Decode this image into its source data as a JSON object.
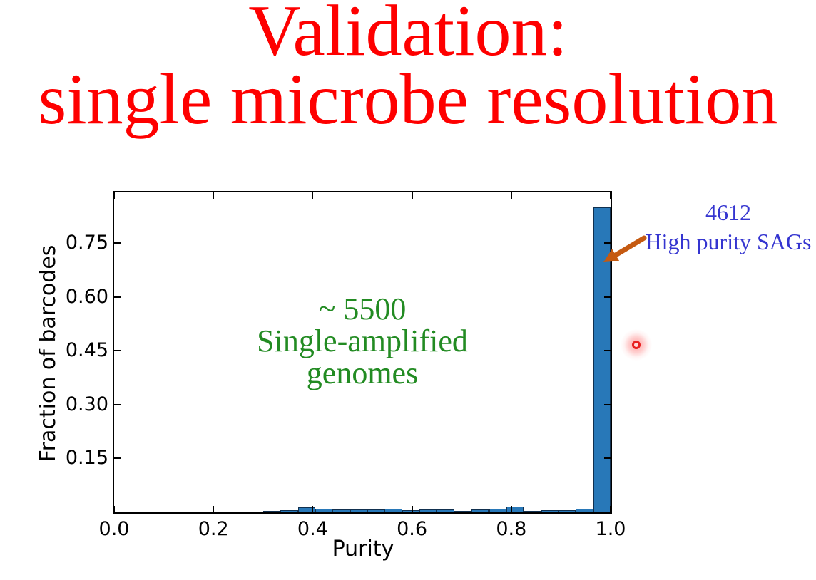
{
  "slide": {
    "title_line1": "Validation:",
    "title_line2": "single microbe resolution",
    "title_color": "#fe0000"
  },
  "chart_data": {
    "type": "bar",
    "subtype": "histogram",
    "title": "",
    "xlabel": "Purity",
    "ylabel": "Fraction of barcodes",
    "xlim": [
      0.0,
      1.0
    ],
    "ylim": [
      0.0,
      0.891
    ],
    "grid": false,
    "legend": null,
    "tick_direction": "in",
    "x_ticks": [
      {
        "value": 0.0,
        "label": "0.0"
      },
      {
        "value": 0.2,
        "label": "0.2"
      },
      {
        "value": 0.4,
        "label": "0.4"
      },
      {
        "value": 0.6,
        "label": "0.6"
      },
      {
        "value": 0.8,
        "label": "0.8"
      },
      {
        "value": 1.0,
        "label": "1.0"
      }
    ],
    "y_ticks": [
      {
        "value": 0.15,
        "label": "0.15"
      },
      {
        "value": 0.3,
        "label": "0.30"
      },
      {
        "value": 0.45,
        "label": "0.45"
      },
      {
        "value": 0.6,
        "label": "0.60"
      },
      {
        "value": 0.75,
        "label": "0.75"
      }
    ],
    "bin_width": 0.035,
    "bins": [
      {
        "x": 0.3,
        "y": 0.003
      },
      {
        "x": 0.335,
        "y": 0.007
      },
      {
        "x": 0.37,
        "y": 0.013
      },
      {
        "x": 0.405,
        "y": 0.01
      },
      {
        "x": 0.44,
        "y": 0.008
      },
      {
        "x": 0.475,
        "y": 0.008
      },
      {
        "x": 0.51,
        "y": 0.008
      },
      {
        "x": 0.545,
        "y": 0.011
      },
      {
        "x": 0.58,
        "y": 0.006
      },
      {
        "x": 0.615,
        "y": 0.008
      },
      {
        "x": 0.65,
        "y": 0.008
      },
      {
        "x": 0.685,
        "y": 0.005
      },
      {
        "x": 0.72,
        "y": 0.008
      },
      {
        "x": 0.755,
        "y": 0.011
      },
      {
        "x": 0.79,
        "y": 0.016
      },
      {
        "x": 0.825,
        "y": 0.004
      },
      {
        "x": 0.86,
        "y": 0.007
      },
      {
        "x": 0.895,
        "y": 0.007
      },
      {
        "x": 0.93,
        "y": 0.01
      },
      {
        "x": 0.965,
        "y": 0.85
      }
    ],
    "colors": {
      "bar_fill": "#2878b8",
      "bar_edge": "#11304f",
      "axis": "#000000"
    }
  },
  "annotations": {
    "high_purity": {
      "line1": "4612",
      "line2": "High purity SAGs",
      "color": "#3535d0"
    },
    "sag_count": {
      "line1": "~ 5500",
      "line2": "Single-amplified genomes",
      "color": "#228b22"
    },
    "arrow_color": "#c55a11",
    "laser_color": "#e82020"
  }
}
